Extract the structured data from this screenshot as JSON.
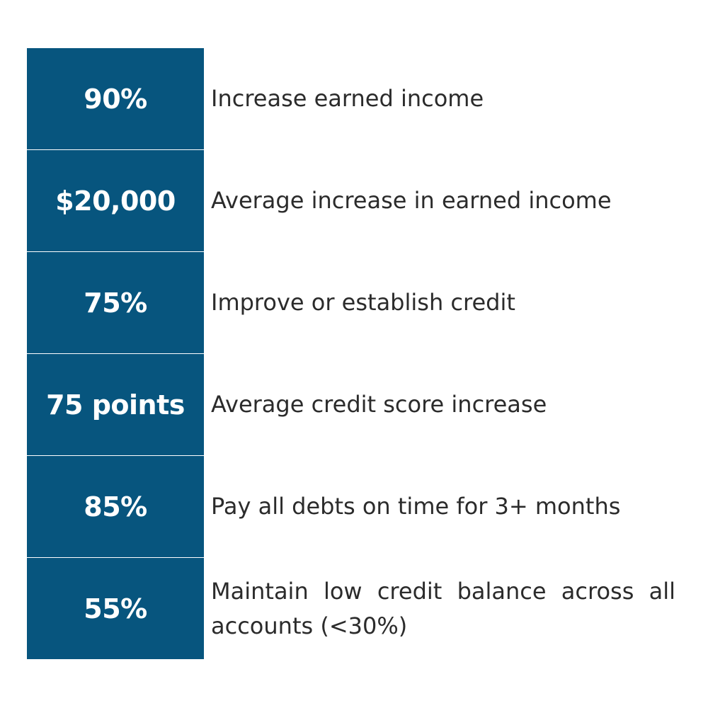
{
  "colors": {
    "value_cell_bg": "#07557e",
    "value_text": "#ffffff",
    "description_text": "#2b2b2b"
  },
  "rows": [
    {
      "value": "90%",
      "description": "Increase earned income"
    },
    {
      "value": "$20,000",
      "description": "Average increase in earned income"
    },
    {
      "value": "75%",
      "description": "Improve or establish credit"
    },
    {
      "value": "75 points",
      "description": "Average credit score increase"
    },
    {
      "value": "85%",
      "description": "Pay all debts on time for 3+ months"
    },
    {
      "value": "55%",
      "description": "Maintain low credit balance across all accounts (<30%)"
    }
  ]
}
